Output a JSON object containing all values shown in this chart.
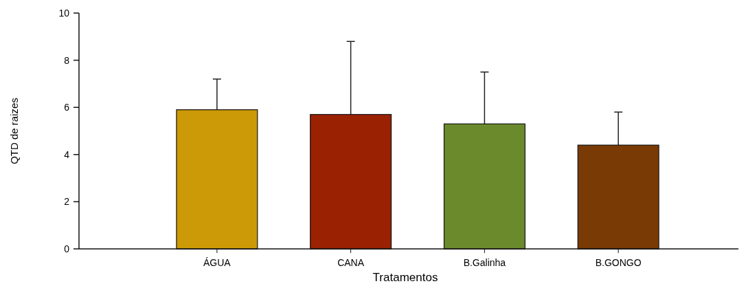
{
  "chart_data": {
    "type": "bar",
    "xlabel": "Tratamentos",
    "ylabel": "QTD de raizes",
    "categories": [
      "ÁGUA",
      "CANA",
      "B.Galinha",
      "B.GONGO"
    ],
    "values": [
      5.9,
      5.7,
      5.3,
      4.4
    ],
    "colors": [
      "#cc9a06",
      "#9a2203",
      "#6b8a2b",
      "#7a3a05"
    ],
    "errors": [
      [
        5.9,
        7.2
      ],
      [
        5.7,
        8.8
      ],
      [
        5.3,
        7.5
      ],
      [
        4.4,
        5.8
      ]
    ],
    "ylim": [
      0,
      10
    ],
    "yticks": [
      0,
      2,
      4,
      6,
      8,
      10
    ],
    "grid": false
  }
}
